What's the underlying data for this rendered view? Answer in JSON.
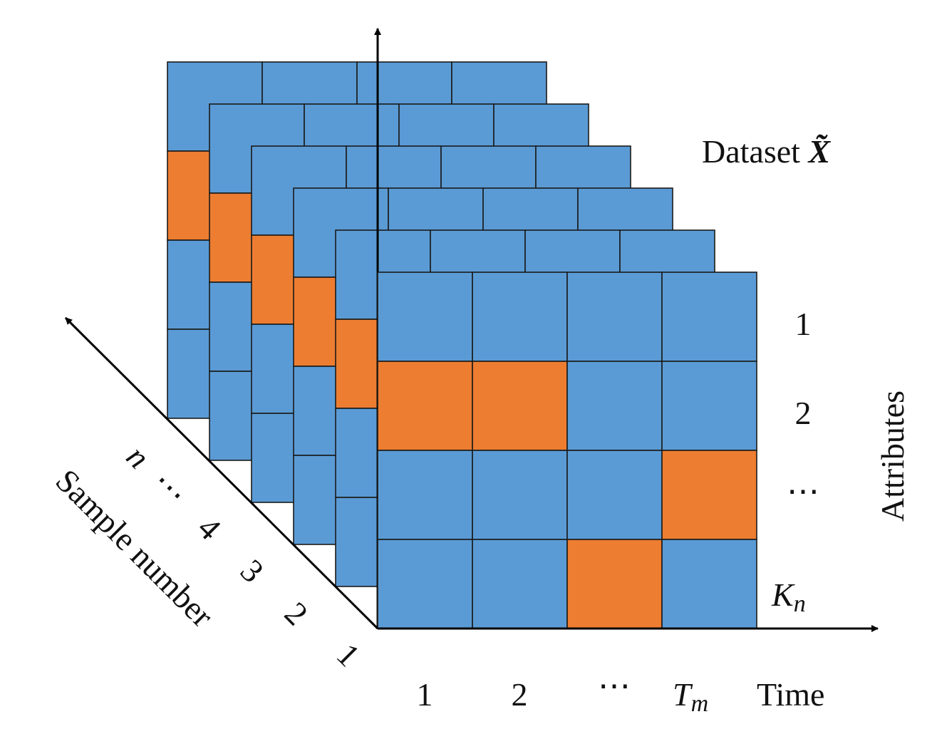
{
  "colors": {
    "cell": "#5b9bd5",
    "highlight": "#ed7d31",
    "grid_line": "#1a1a1a",
    "axis": "#000000",
    "text": "#111111"
  },
  "dataset_label": {
    "prefix": "Dataset ",
    "symbol": "X̃"
  },
  "attributes_axis": {
    "title": "Attributes",
    "labels": [
      "1",
      "2",
      "⋯"
    ],
    "last_label": {
      "base": "K",
      "sub": "n"
    }
  },
  "time_axis": {
    "title": "Time",
    "labels": [
      "1",
      "2",
      "⋯"
    ],
    "last_label": {
      "base": "T",
      "sub": "m"
    }
  },
  "sample_axis": {
    "title": "Sample number",
    "labels": [
      "1",
      "2",
      "3",
      "4",
      "⋯",
      "n"
    ]
  },
  "layers": [
    {
      "index": "n",
      "highlight_cells": [
        [
          1,
          0
        ]
      ]
    },
    {
      "index": "…",
      "highlight_cells": [
        [
          1,
          0
        ]
      ]
    },
    {
      "index": "…",
      "highlight_cells": [
        [
          1,
          0
        ]
      ]
    },
    {
      "index": "4",
      "highlight_cells": [
        [
          1,
          0
        ]
      ]
    },
    {
      "index": "3",
      "highlight_cells": [
        [
          1,
          0
        ]
      ]
    },
    {
      "index": "1",
      "highlight_cells": [
        [
          1,
          0
        ],
        [
          1,
          1
        ],
        [
          2,
          3
        ],
        [
          3,
          2
        ]
      ]
    }
  ]
}
